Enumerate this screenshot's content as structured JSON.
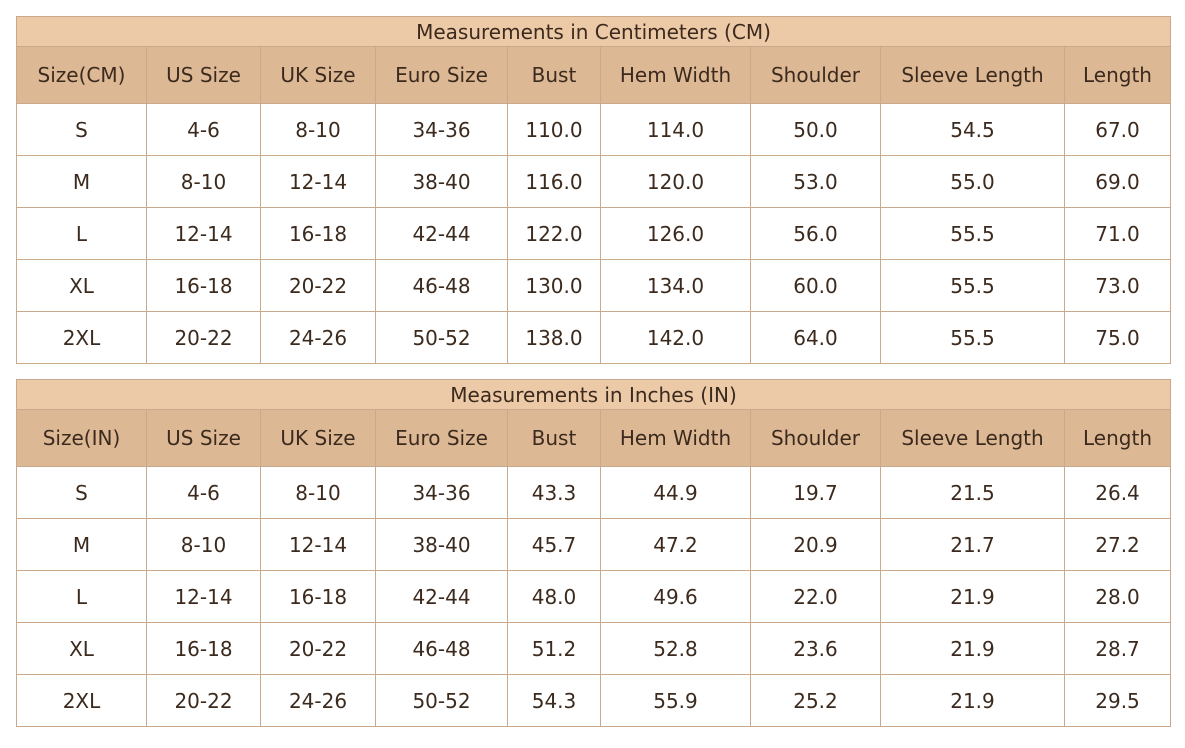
{
  "tables": [
    {
      "title": "Measurements in Centimeters (CM)",
      "header": [
        "Size(CM)",
        "US Size",
        "UK Size",
        "Euro Size",
        "Bust",
        "Hem Width",
        "Shoulder",
        "Sleeve Length",
        "Length"
      ],
      "rows": [
        [
          "S",
          "4-6",
          "8-10",
          "34-36",
          "110.0",
          "114.0",
          "50.0",
          "54.5",
          "67.0"
        ],
        [
          "M",
          "8-10",
          "12-14",
          "38-40",
          "116.0",
          "120.0",
          "53.0",
          "55.0",
          "69.0"
        ],
        [
          "L",
          "12-14",
          "16-18",
          "42-44",
          "122.0",
          "126.0",
          "56.0",
          "55.5",
          "71.0"
        ],
        [
          "XL",
          "16-18",
          "20-22",
          "46-48",
          "130.0",
          "134.0",
          "60.0",
          "55.5",
          "73.0"
        ],
        [
          "2XL",
          "20-22",
          "24-26",
          "50-52",
          "138.0",
          "142.0",
          "64.0",
          "55.5",
          "75.0"
        ]
      ]
    },
    {
      "title": "Measurements in Inches (IN)",
      "header": [
        "Size(IN)",
        "US Size",
        "UK Size",
        "Euro Size",
        "Bust",
        "Hem Width",
        "Shoulder",
        "Sleeve Length",
        "Length"
      ],
      "rows": [
        [
          "S",
          "4-6",
          "8-10",
          "34-36",
          "43.3",
          "44.9",
          "19.7",
          "21.5",
          "26.4"
        ],
        [
          "M",
          "8-10",
          "12-14",
          "38-40",
          "45.7",
          "47.2",
          "20.9",
          "21.7",
          "27.2"
        ],
        [
          "L",
          "12-14",
          "16-18",
          "42-44",
          "48.0",
          "49.6",
          "22.0",
          "21.9",
          "28.0"
        ],
        [
          "XL",
          "16-18",
          "20-22",
          "46-48",
          "51.2",
          "52.8",
          "23.6",
          "21.9",
          "28.7"
        ],
        [
          "2XL",
          "20-22",
          "24-26",
          "50-52",
          "54.3",
          "55.9",
          "25.2",
          "21.9",
          "29.5"
        ]
      ]
    }
  ]
}
